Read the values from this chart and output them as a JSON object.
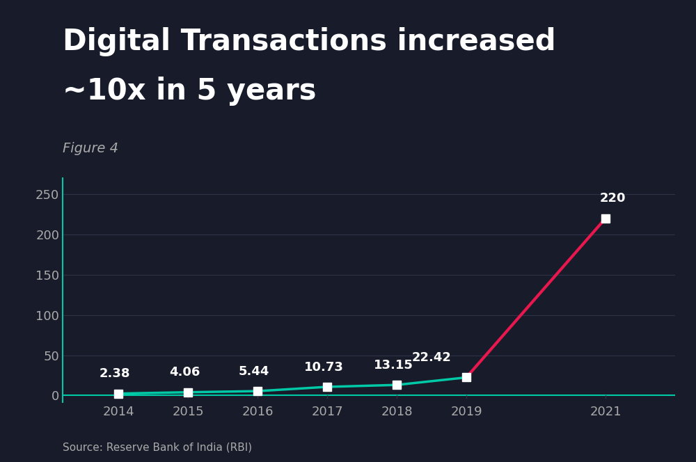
{
  "title_line1": "Digital Transactions increased",
  "title_line2": "~10x in 5 years",
  "subtitle": "Figure 4",
  "source": "Source: Reserve Bank of India (RBI)",
  "years": [
    2014,
    2015,
    2016,
    2017,
    2018,
    2019,
    2021
  ],
  "values": [
    2.38,
    4.06,
    5.44,
    10.73,
    13.15,
    22.42,
    220
  ],
  "background_color": "#181c2a",
  "line_color_teal": "#00c9a7",
  "line_color_red": "#e8174d",
  "marker_color": "#ffffff",
  "text_color": "#ffffff",
  "axis_label_color": "#aaaaaa",
  "title_fontsize": 30,
  "subtitle_fontsize": 14,
  "label_fontsize": 13,
  "tick_fontsize": 13,
  "source_fontsize": 11,
  "yticks": [
    0,
    50,
    100,
    150,
    200,
    250
  ],
  "ylim": [
    -8,
    270
  ],
  "xlim_left": 2013.2,
  "xlim_right": 2022.0,
  "marker_size": 8,
  "line_width": 2.5,
  "grid_color": "#2e3348"
}
